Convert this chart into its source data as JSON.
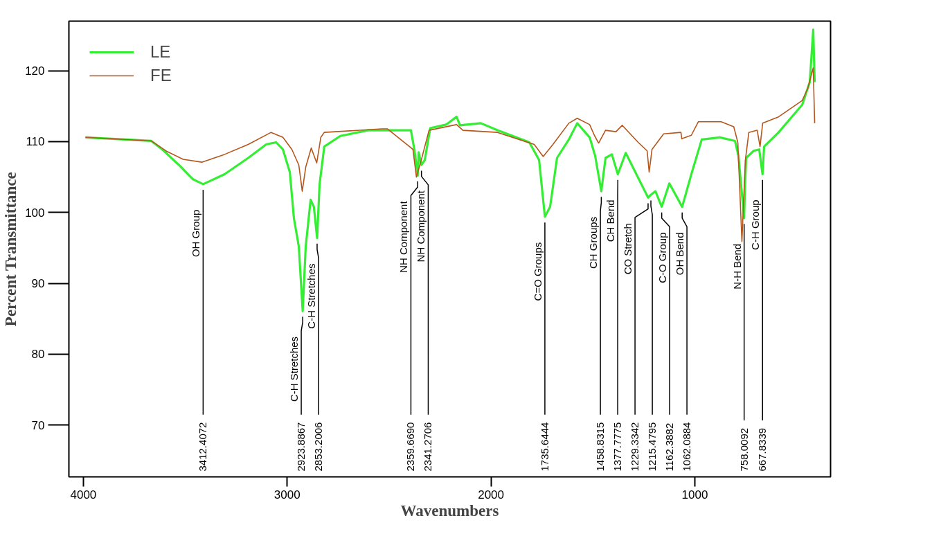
{
  "chart_data": {
    "type": "line",
    "xlabel": "Wavenumbers",
    "ylabel": "Percent Transmittance",
    "xlim": [
      4071,
      334
    ],
    "ylim": [
      62.7,
      127.0
    ],
    "xticks": [
      4000,
      3000,
      2000,
      1000
    ],
    "yticks": [
      70,
      80,
      90,
      100,
      110,
      120
    ],
    "legend": "top left",
    "series": [
      {
        "name": "LE",
        "color": "#33ee33",
        "x": [
          3990,
          3667,
          3613,
          3531,
          3463,
          3412.4072,
          3307,
          3191,
          3103,
          3055,
          3021,
          2987,
          2967,
          2943,
          2923.8867,
          2909,
          2885,
          2869,
          2853.2006,
          2841,
          2818,
          2739,
          2603,
          2393,
          2376,
          2359.669,
          2355,
          2341.2706,
          2325,
          2298,
          2220,
          2169,
          2152,
          2050,
          1968,
          1812,
          1764,
          1735.6444,
          1710,
          1676,
          1618,
          1577,
          1516,
          1489,
          1458.8315,
          1438,
          1407,
          1377.7775,
          1339,
          1229.3342,
          1215.4795,
          1193,
          1162.3882,
          1125,
          1062.0884,
          1017,
          966,
          877,
          803,
          786,
          758.0092,
          755,
          748,
          711,
          684,
          667.8339,
          660,
          589,
          473,
          436,
          419,
          412
        ],
        "values": [
          110.6,
          110.1,
          108.9,
          106.7,
          104.7,
          104.0,
          105.4,
          107.7,
          109.6,
          109.9,
          108.9,
          105.7,
          99.2,
          95.2,
          86.1,
          95.2,
          101.8,
          100.8,
          96.4,
          104.0,
          109.3,
          110.8,
          111.6,
          111.6,
          108.9,
          105.2,
          108.5,
          106.7,
          107.4,
          111.9,
          112.4,
          113.5,
          112.3,
          112.6,
          111.6,
          109.9,
          107.4,
          99.4,
          100.8,
          107.7,
          110.3,
          112.6,
          110.6,
          108.0,
          103.0,
          107.7,
          108.2,
          105.4,
          108.4,
          102.1,
          102.5,
          103.0,
          100.8,
          104.1,
          100.8,
          105.4,
          110.3,
          110.6,
          110.1,
          108.0,
          99.2,
          102.8,
          107.7,
          108.7,
          108.9,
          105.4,
          109.3,
          111.3,
          115.2,
          118.4,
          125.8,
          118.4
        ]
      },
      {
        "name": "FE",
        "color": "#b5561c",
        "x": [
          3990,
          3667,
          3589,
          3511,
          3419,
          3307,
          3191,
          3079,
          3021,
          2977,
          2943,
          2926,
          2909,
          2882,
          2855,
          2835,
          2818,
          2535,
          2508,
          2383,
          2366,
          2342,
          2304,
          2169,
          2138,
          1968,
          1788,
          1744,
          1696,
          1618,
          1577,
          1516,
          1493,
          1472,
          1438,
          1387,
          1356,
          1278,
          1234,
          1224,
          1210,
          1153,
          1068,
          1064,
          1017,
          983,
          871,
          809,
          789,
          769,
          752,
          735,
          694,
          680,
          667,
          589,
          473,
          446,
          419,
          412
        ],
        "values": [
          110.6,
          110.1,
          108.6,
          107.5,
          107.1,
          108.2,
          109.6,
          111.3,
          110.6,
          108.9,
          106.7,
          103.0,
          106.4,
          109.1,
          107.0,
          110.6,
          111.3,
          111.8,
          111.8,
          108.9,
          105.0,
          107.4,
          111.6,
          112.4,
          111.6,
          111.3,
          109.6,
          107.9,
          109.6,
          112.6,
          113.3,
          112.4,
          110.9,
          109.8,
          111.6,
          111.4,
          112.3,
          109.9,
          108.7,
          105.7,
          108.9,
          111.1,
          111.3,
          110.4,
          110.9,
          112.8,
          112.8,
          112.1,
          109.9,
          95.9,
          107.4,
          111.3,
          111.6,
          109.3,
          112.6,
          113.5,
          115.8,
          117.5,
          120.4,
          112.6
        ]
      }
    ],
    "annotations": [
      {
        "text": "OH Group",
        "x": 3412.4072,
        "y": 104.0
      },
      {
        "text": "3412.4072",
        "x": 3412.4072,
        "y": 104.0
      },
      {
        "text": "C-H Stretches",
        "x": 2923.8867,
        "y": 86.1
      },
      {
        "text": "2923.8867",
        "x": 2923.8867,
        "y": 86.1
      },
      {
        "text": "C-H Stretches",
        "x": 2853.2006,
        "y": 96.4
      },
      {
        "text": "2853.2006",
        "x": 2853.2006,
        "y": 96.4
      },
      {
        "text": "NH Component",
        "x": 2359.669,
        "y": 105.2
      },
      {
        "text": "2359.6690",
        "x": 2359.669,
        "y": 105.2
      },
      {
        "text": "NH Component",
        "x": 2341.2706,
        "y": 106.7
      },
      {
        "text": "2341.2706",
        "x": 2341.2706,
        "y": 106.7
      },
      {
        "text": "C=O Groups",
        "x": 1735.6444,
        "y": 99.4
      },
      {
        "text": "1735.6444",
        "x": 1735.6444,
        "y": 99.4
      },
      {
        "text": "CH Groups",
        "x": 1458.8315,
        "y": 103.0
      },
      {
        "text": "1458.8315",
        "x": 1458.8315,
        "y": 103.0
      },
      {
        "text": "CH Bend",
        "x": 1377.7775,
        "y": 105.4
      },
      {
        "text": "1377.7775",
        "x": 1377.7775,
        "y": 105.4
      },
      {
        "text": "CO Stretch",
        "x": 1229.3342,
        "y": 102.1
      },
      {
        "text": "1229.3342",
        "x": 1229.3342,
        "y": 102.1
      },
      {
        "text": "1215.4795",
        "x": 1215.4795,
        "y": 102.5
      },
      {
        "text": "C-O Group",
        "x": 1162.3882,
        "y": 100.8
      },
      {
        "text": "1162.3882",
        "x": 1162.3882,
        "y": 100.8
      },
      {
        "text": "OH Bend",
        "x": 1062.0884,
        "y": 100.8
      },
      {
        "text": "1062.0884",
        "x": 1062.0884,
        "y": 100.8
      },
      {
        "text": "N-H Bend",
        "x": 758.0092,
        "y": 99.2
      },
      {
        "text": "758.0092",
        "x": 758.0092,
        "y": 99.2
      },
      {
        "text": "C-H Group",
        "x": 667.8339,
        "y": 105.4
      },
      {
        "text": "667.8339",
        "x": 667.8339,
        "y": 105.4
      }
    ]
  }
}
